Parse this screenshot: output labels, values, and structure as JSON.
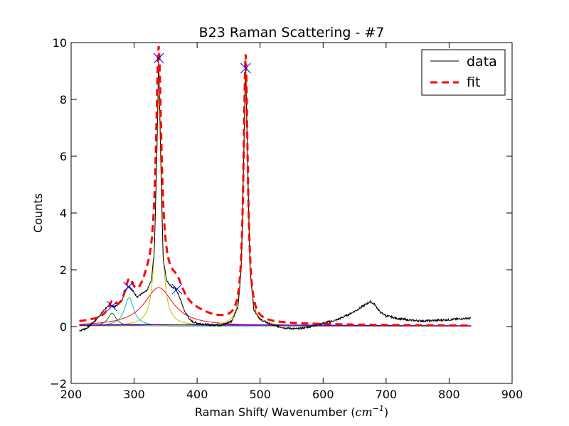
{
  "chart_data": {
    "type": "line",
    "title": "B23 Raman Scattering - #7",
    "xlabel": "Raman Shift/ Wavenumber (",
    "xlabel_unit": "cm",
    "xlabel_unit_exp": "−1",
    "xlabel_close": ")",
    "ylabel": "Counts",
    "xlim": [
      200,
      900
    ],
    "ylim": [
      -2,
      10
    ],
    "xticks": [
      200,
      300,
      400,
      500,
      600,
      700,
      800,
      900
    ],
    "yticks": [
      -2,
      0,
      2,
      4,
      6,
      8,
      10
    ],
    "ytick_labels": [
      "−2",
      "0",
      "2",
      "4",
      "6",
      "8",
      "10"
    ],
    "legend_position": "upper right",
    "legend": [
      {
        "label": "data",
        "color": "#000000",
        "style": "solid"
      },
      {
        "label": "fit",
        "color": "#ff0000",
        "style": "dashed"
      }
    ],
    "data_x_range": [
      213,
      835
    ],
    "data_anchor_points": [
      [
        213,
        -0.15
      ],
      [
        225,
        -0.05
      ],
      [
        240,
        0.25
      ],
      [
        255,
        0.65
      ],
      [
        263,
        0.75
      ],
      [
        270,
        0.7
      ],
      [
        280,
        0.9
      ],
      [
        287,
        1.3
      ],
      [
        292,
        1.45
      ],
      [
        298,
        1.25
      ],
      [
        305,
        1.05
      ],
      [
        312,
        1.15
      ],
      [
        320,
        1.25
      ],
      [
        327,
        1.6
      ],
      [
        332,
        2.6
      ],
      [
        336,
        6.0
      ],
      [
        339,
        9.45
      ],
      [
        342,
        6.2
      ],
      [
        346,
        2.4
      ],
      [
        352,
        1.6
      ],
      [
        360,
        1.4
      ],
      [
        367,
        1.3
      ],
      [
        372,
        1.05
      ],
      [
        380,
        0.55
      ],
      [
        390,
        0.2
      ],
      [
        400,
        0.12
      ],
      [
        420,
        0.06
      ],
      [
        440,
        0.05
      ],
      [
        455,
        0.2
      ],
      [
        465,
        0.7
      ],
      [
        470,
        2.0
      ],
      [
        474,
        6.0
      ],
      [
        477,
        9.1
      ],
      [
        480,
        6.0
      ],
      [
        484,
        2.0
      ],
      [
        490,
        0.6
      ],
      [
        500,
        0.25
      ],
      [
        520,
        0.05
      ],
      [
        540,
        -0.05
      ],
      [
        560,
        -0.08
      ],
      [
        580,
        0.0
      ],
      [
        600,
        0.12
      ],
      [
        620,
        0.22
      ],
      [
        640,
        0.42
      ],
      [
        655,
        0.6
      ],
      [
        665,
        0.75
      ],
      [
        675,
        0.88
      ],
      [
        682,
        0.78
      ],
      [
        690,
        0.52
      ],
      [
        700,
        0.38
      ],
      [
        720,
        0.28
      ],
      [
        740,
        0.22
      ],
      [
        760,
        0.2
      ],
      [
        780,
        0.22
      ],
      [
        800,
        0.24
      ],
      [
        820,
        0.28
      ],
      [
        835,
        0.3
      ]
    ],
    "peak_markers": [
      [
        265,
        0.72
      ],
      [
        291,
        1.4
      ],
      [
        339,
        9.45
      ],
      [
        368,
        1.32
      ],
      [
        477,
        9.1
      ]
    ],
    "baseline": 0.02,
    "components": [
      {
        "center": 265,
        "amplitude": 0.45,
        "hwhm": 8,
        "color": "#008000"
      },
      {
        "center": 292,
        "amplitude": 1.0,
        "hwhm": 9,
        "color": "#00bfbf"
      },
      {
        "center": 339,
        "amplitude": 1.35,
        "hwhm": 28,
        "color": "#ff0000"
      },
      {
        "center": 339,
        "amplitude": 8.1,
        "hwhm": 5,
        "color": "#bfbf00"
      },
      {
        "center": 477,
        "amplitude": 9.4,
        "hwhm": 4,
        "color": "#bfbf00"
      },
      {
        "center": 300,
        "amplitude": 0.06,
        "hwhm": 120,
        "color": "#bf00bf"
      },
      {
        "center": 430,
        "amplitude": 0.05,
        "hwhm": 200,
        "color": "#0000ff"
      }
    ],
    "fit_extra": [
      {
        "center": 368,
        "amplitude": 0.7,
        "hwhm": 14
      },
      {
        "center": 320,
        "amplitude": 0.35,
        "hwhm": 12
      },
      {
        "center": 400,
        "amplitude": 0.15,
        "hwhm": 30
      }
    ],
    "colors": {
      "data": "#000000",
      "fit": "#ff0000",
      "marker": "#0000ff"
    }
  }
}
